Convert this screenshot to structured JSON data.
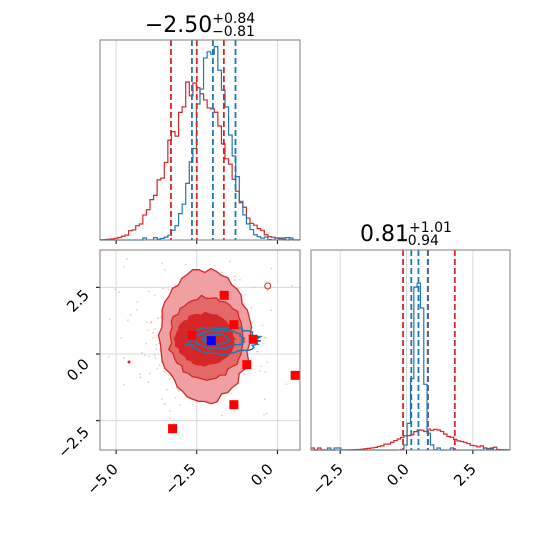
{
  "chart_data": {
    "type": "corner",
    "grid": true,
    "colors": {
      "series_a": "#d62728",
      "series_b": "#1f77b4",
      "truth_marker": "#0000ff",
      "sample_marker": "#ff0000"
    },
    "parameters": [
      {
        "title_value": "−2.50",
        "title_plus": "+0.84",
        "title_minus": "−0.81",
        "range": [
          -5.5,
          0.7
        ],
        "ticks": [
          -5.0,
          -2.5,
          0.0
        ],
        "tick_labels": [
          "−5.0",
          "−2.5",
          "0.0"
        ]
      },
      {
        "title_value": "0.81",
        "title_plus": "+1.01",
        "title_minus": "−0.94",
        "range": [
          -3.6,
          3.9
        ],
        "ticks": [
          -2.5,
          0.0,
          2.5
        ],
        "tick_labels": [
          "−2.5",
          "0.0",
          "2.5"
        ]
      }
    ],
    "series": [
      {
        "series_key": "series_a",
        "quantiles_p1": [
          -3.3,
          -2.5,
          -1.66
        ],
        "quantiles_p2": [
          -0.13,
          0.81,
          1.82
        ],
        "hist_p1": {
          "mean": -2.5,
          "sd": 0.83,
          "peak": 0.76
        },
        "hist_p2": {
          "mean": 0.81,
          "sd": 0.98,
          "peak": 0.1
        },
        "contours": [
          {
            "center": [
              -2.25,
              0.7
            ],
            "rx": 1.4,
            "ry": 2.45,
            "fill": "#f0a0a2",
            "fill_opacity": 1
          },
          {
            "center": [
              -2.2,
              0.6
            ],
            "rx": 1.15,
            "ry": 1.55,
            "fill": "#e46868",
            "fill_opacity": 1
          },
          {
            "center": [
              -2.25,
              0.55
            ],
            "rx": 0.9,
            "ry": 0.95,
            "fill": "#d62728",
            "fill_opacity": 1
          }
        ]
      },
      {
        "series_key": "series_b",
        "quantiles_p1": [
          -2.65,
          -2.0,
          -1.3
        ],
        "quantiles_p2": [
          0.18,
          0.45,
          0.8
        ],
        "hist_p1": {
          "mean": -2.0,
          "sd": 0.5,
          "peak": 0.93
        },
        "hist_p2": {
          "mean": 0.45,
          "sd": 0.18,
          "peak": 0.92
        },
        "contours": [
          {
            "center": [
              -1.7,
              0.5
            ],
            "rx": 1.1,
            "ry": 0.5
          },
          {
            "center": [
              -1.8,
              0.55
            ],
            "rx": 0.75,
            "ry": 0.33
          },
          {
            "center": [
              -1.9,
              0.55
            ],
            "rx": 0.4,
            "ry": 0.18
          }
        ]
      }
    ],
    "truth_point": [
      -2.05,
      0.5
    ],
    "sample_points": [
      [
        -1.65,
        2.2
      ],
      [
        -1.35,
        1.1
      ],
      [
        -2.65,
        0.7
      ],
      [
        -0.75,
        0.55
      ],
      [
        -0.95,
        -0.4
      ],
      [
        0.55,
        -0.8
      ],
      [
        -1.35,
        -1.9
      ],
      [
        -3.25,
        -2.8
      ]
    ]
  }
}
